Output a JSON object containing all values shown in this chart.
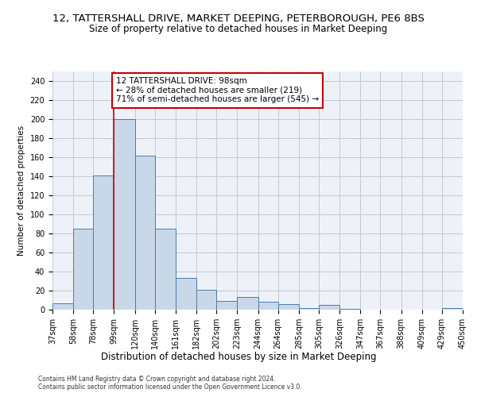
{
  "title": "12, TATTERSHALL DRIVE, MARKET DEEPING, PETERBOROUGH, PE6 8BS",
  "subtitle": "Size of property relative to detached houses in Market Deeping",
  "xlabel": "Distribution of detached houses by size in Market Deeping",
  "ylabel": "Number of detached properties",
  "bar_values": [
    7,
    85,
    141,
    200,
    162,
    85,
    33,
    21,
    9,
    13,
    8,
    6,
    2,
    5,
    1,
    0,
    0,
    0,
    0,
    2
  ],
  "bin_edges": [
    37,
    58,
    78,
    99,
    120,
    140,
    161,
    182,
    202,
    223,
    244,
    264,
    285,
    305,
    326,
    347,
    367,
    388,
    409,
    429,
    450
  ],
  "tick_labels": [
    "37sqm",
    "58sqm",
    "78sqm",
    "99sqm",
    "120sqm",
    "140sqm",
    "161sqm",
    "182sqm",
    "202sqm",
    "223sqm",
    "244sqm",
    "264sqm",
    "285sqm",
    "305sqm",
    "326sqm",
    "347sqm",
    "367sqm",
    "388sqm",
    "409sqm",
    "429sqm",
    "450sqm"
  ],
  "bar_color": "#c8d8e8",
  "bar_edge_color": "#4a7aaf",
  "property_line_x": 99,
  "property_line_color": "#cc0000",
  "annotation_text": "12 TATTERSHALL DRIVE: 98sqm\n← 28% of detached houses are smaller (219)\n71% of semi-detached houses are larger (545) →",
  "annotation_box_color": "#ffffff",
  "annotation_box_edge": "#cc0000",
  "ylim": [
    0,
    250
  ],
  "yticks": [
    0,
    20,
    40,
    60,
    80,
    100,
    120,
    140,
    160,
    180,
    200,
    220,
    240
  ],
  "grid_color": "#c0c8d8",
  "bg_color": "#eef2f8",
  "footer_line1": "Contains HM Land Registry data © Crown copyright and database right 2024.",
  "footer_line2": "Contains public sector information licensed under the Open Government Licence v3.0.",
  "title_fontsize": 9.5,
  "subtitle_fontsize": 8.5,
  "xlabel_fontsize": 8.5,
  "ylabel_fontsize": 7.5,
  "tick_fontsize": 7,
  "annotation_fontsize": 7.5,
  "footer_fontsize": 5.5
}
